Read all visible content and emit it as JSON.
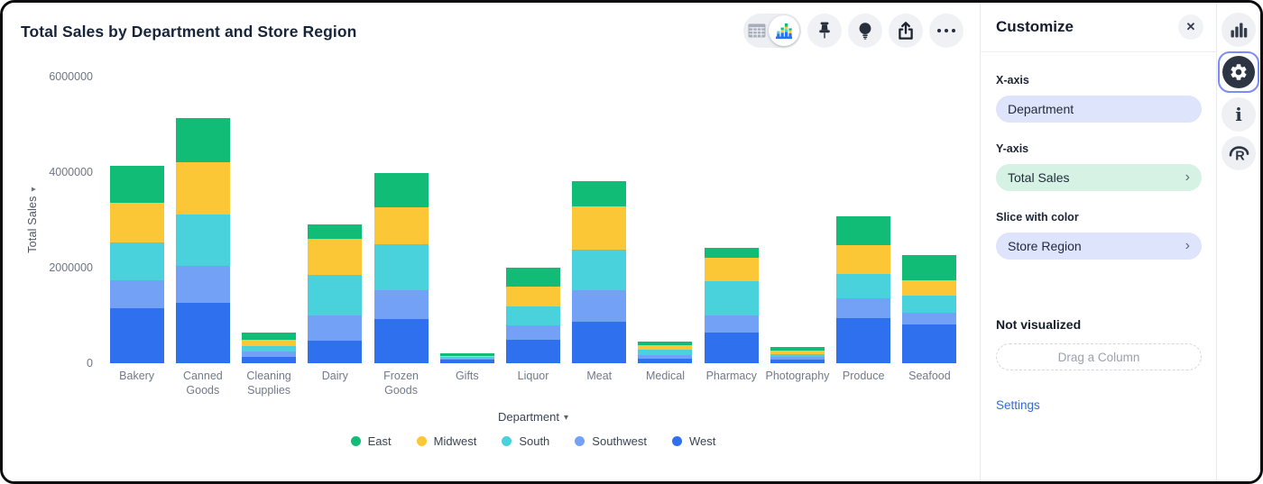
{
  "header": {
    "title": "Total Sales by Department and Store Region",
    "toolbar": {
      "view_toggle": {
        "left_icon": "table-grid-icon",
        "right_icon": "mini-bar-chart-icon",
        "selected": "chart"
      },
      "buttons": [
        {
          "name": "pin",
          "icon": "pushpin-icon"
        },
        {
          "name": "explain",
          "icon": "lightbulb-icon"
        },
        {
          "name": "share",
          "icon": "share-export-icon"
        },
        {
          "name": "more",
          "icon": "ellipsis-icon"
        }
      ]
    }
  },
  "chart_data": {
    "type": "bar",
    "stacked": true,
    "title": "Total Sales by Department and Store Region",
    "xlabel": "Department",
    "ylabel": "Total Sales",
    "ylim": [
      0,
      6000000
    ],
    "grid": false,
    "legend_position": "bottom",
    "yticks": [
      {
        "value": 0,
        "label": "0"
      },
      {
        "value": 2000000,
        "label": "2000000"
      },
      {
        "value": 4000000,
        "label": "4000000"
      },
      {
        "value": 6000000,
        "label": "6000000"
      }
    ],
    "categories": [
      "Bakery",
      "Canned Goods",
      "Cleaning Supplies",
      "Dairy",
      "Frozen Goods",
      "Gifts",
      "Liquor",
      "Meat",
      "Medical",
      "Pharmacy",
      "Photography",
      "Produce",
      "Seafood"
    ],
    "series": [
      {
        "name": "East",
        "color": "#11bd76",
        "values": [
          780000,
          940000,
          155000,
          315000,
          710000,
          45000,
          390000,
          530000,
          85000,
          205000,
          80000,
          600000,
          520000
        ]
      },
      {
        "name": "Midwest",
        "color": "#fcc737",
        "values": [
          830000,
          1080000,
          125000,
          755000,
          765000,
          28000,
          410000,
          915000,
          95000,
          490000,
          75000,
          620000,
          330000
        ]
      },
      {
        "name": "South",
        "color": "#49d1dc",
        "values": [
          790000,
          1090000,
          120000,
          840000,
          980000,
          28000,
          410000,
          850000,
          115000,
          725000,
          65000,
          505000,
          355000
        ]
      },
      {
        "name": "Southwest",
        "color": "#73a1f5",
        "values": [
          580000,
          770000,
          100000,
          535000,
          600000,
          28000,
          285000,
          660000,
          65000,
          345000,
          55000,
          410000,
          235000
        ]
      },
      {
        "name": "West",
        "color": "#2f70ee",
        "values": [
          1160000,
          1260000,
          140000,
          470000,
          920000,
          75000,
          500000,
          860000,
          100000,
          650000,
          70000,
          945000,
          820000
        ]
      }
    ],
    "stack_order_bottom_to_top": [
      "West",
      "Southwest",
      "South",
      "Midwest",
      "East"
    ]
  },
  "panel": {
    "title": "Customize",
    "close_icon": "close-icon",
    "x_axis": {
      "label": "X-axis",
      "value": "Department"
    },
    "y_axis": {
      "label": "Y-axis",
      "value": "Total Sales",
      "chevron": "›"
    },
    "slice": {
      "label": "Slice with color",
      "value": "Store Region",
      "chevron": "›"
    },
    "not_visualized": {
      "label": "Not visualized",
      "drop_placeholder": "Drag a Column"
    },
    "settings_link": "Settings"
  },
  "rail": {
    "icons": [
      {
        "name": "chart-output",
        "icon": "bar-chart-icon",
        "selected": false
      },
      {
        "name": "chart-settings",
        "icon": "gear-icon",
        "selected": true
      },
      {
        "name": "info",
        "icon": "info-icon",
        "selected": false
      },
      {
        "name": "r-language",
        "icon": "r-logo-icon",
        "selected": false
      }
    ]
  }
}
